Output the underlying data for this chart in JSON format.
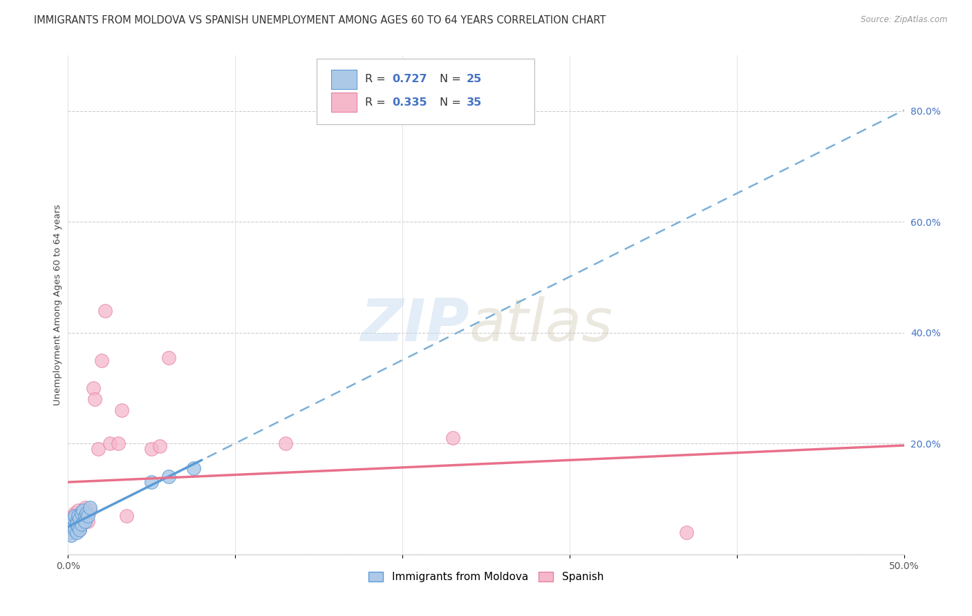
{
  "title": "IMMIGRANTS FROM MOLDOVA VS SPANISH UNEMPLOYMENT AMONG AGES 60 TO 64 YEARS CORRELATION CHART",
  "source": "Source: ZipAtlas.com",
  "ylabel": "Unemployment Among Ages 60 to 64 years",
  "xlim": [
    0.0,
    0.5
  ],
  "ylim": [
    0.0,
    0.9
  ],
  "xticks": [
    0.0,
    0.1,
    0.2,
    0.3,
    0.4,
    0.5
  ],
  "xticklabels": [
    "0.0%",
    "",
    "",
    "",
    "",
    "50.0%"
  ],
  "yticks_right": [
    0.2,
    0.4,
    0.6,
    0.8
  ],
  "yticklabels_right": [
    "20.0%",
    "40.0%",
    "60.0%",
    "80.0%"
  ],
  "legend_R1": "R = 0.727",
  "legend_N1": "N = 25",
  "legend_R2": "R = 0.335",
  "legend_N2": "N = 35",
  "blue_color": "#adc9e8",
  "pink_color": "#f5b8cb",
  "blue_edge_color": "#5b9bd5",
  "pink_edge_color": "#e87fa0",
  "trend_blue_color": "#7ab0d8",
  "trend_pink_color": "#e8708a",
  "r_n_color": "#4472c4",
  "blue_scatter_x": [
    0.001,
    0.002,
    0.002,
    0.003,
    0.003,
    0.004,
    0.004,
    0.005,
    0.005,
    0.005,
    0.006,
    0.006,
    0.007,
    0.007,
    0.008,
    0.008,
    0.009,
    0.01,
    0.01,
    0.011,
    0.012,
    0.013,
    0.05,
    0.06,
    0.075
  ],
  "blue_scatter_y": [
    0.04,
    0.055,
    0.035,
    0.05,
    0.065,
    0.045,
    0.07,
    0.06,
    0.04,
    0.055,
    0.05,
    0.07,
    0.065,
    0.045,
    0.075,
    0.055,
    0.08,
    0.07,
    0.06,
    0.075,
    0.07,
    0.085,
    0.13,
    0.14,
    0.155
  ],
  "pink_scatter_x": [
    0.001,
    0.001,
    0.002,
    0.002,
    0.003,
    0.003,
    0.004,
    0.004,
    0.005,
    0.005,
    0.006,
    0.006,
    0.007,
    0.007,
    0.008,
    0.009,
    0.01,
    0.011,
    0.012,
    0.013,
    0.015,
    0.016,
    0.018,
    0.02,
    0.022,
    0.025,
    0.03,
    0.032,
    0.035,
    0.05,
    0.055,
    0.06,
    0.13,
    0.23,
    0.37
  ],
  "pink_scatter_y": [
    0.05,
    0.04,
    0.06,
    0.045,
    0.07,
    0.055,
    0.06,
    0.075,
    0.05,
    0.065,
    0.055,
    0.08,
    0.06,
    0.045,
    0.075,
    0.065,
    0.085,
    0.07,
    0.06,
    0.08,
    0.3,
    0.28,
    0.19,
    0.35,
    0.44,
    0.2,
    0.2,
    0.26,
    0.07,
    0.19,
    0.195,
    0.355,
    0.2,
    0.21,
    0.04
  ]
}
